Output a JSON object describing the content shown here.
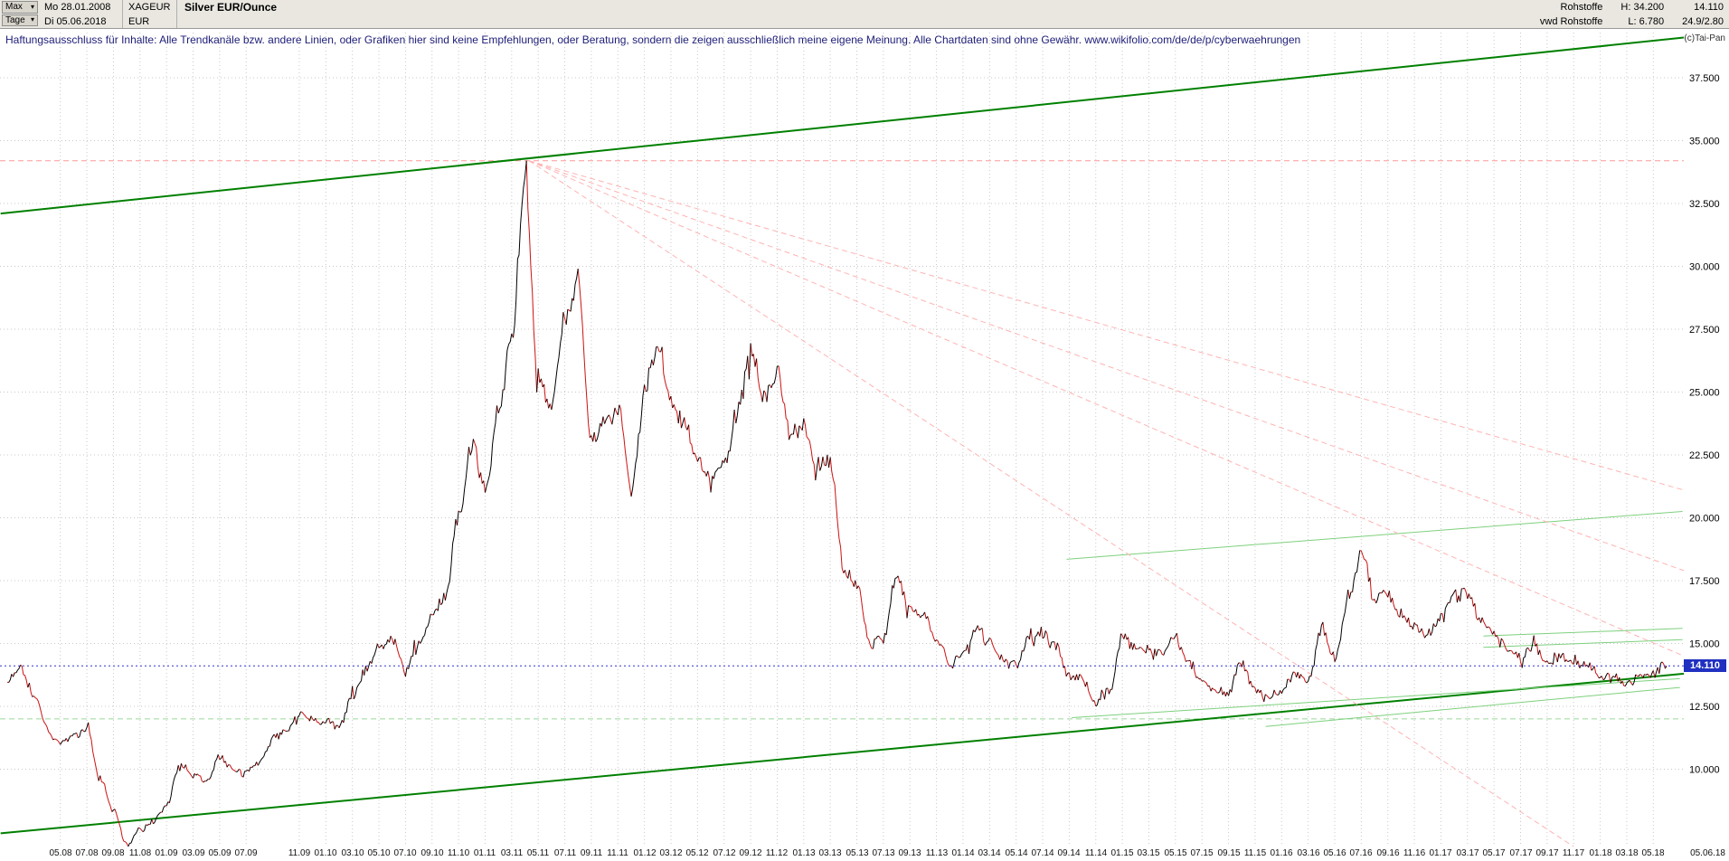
{
  "header": {
    "range_selector": "Max",
    "period_selector": "Tage",
    "start_date": "Mo 28.01.2008",
    "end_date": "Di 05.06.2018",
    "symbol": "XAGEUR",
    "currency": "EUR",
    "title": "Silver EUR/Ounce",
    "feed_line1": "Rohstoffe",
    "feed_line2": "vwd Rohstoffe",
    "high_label": "H: 34.200",
    "low_label": "L: 6.780",
    "value_top": "14.110",
    "value_bottom": "24.9/2.80",
    "copyright": "(c)Tai-Pan"
  },
  "disclaimer": "Haftungsausschluss für Inhalte: Alle Trendkanäle bzw. andere Linien, oder Grafiken hier sind keine Empfehlungen, oder Beratung, sondern die zeigen ausschließlich meine eigene Meinung. Alle Chartdaten sind ohne Gewähr.  www.wikifolio.com/de/de/p/cyberwaehrungen",
  "chart_data": {
    "type": "candlestick",
    "title": "Silver EUR/Ounce",
    "symbol": "XAGEUR",
    "currency": "EUR",
    "range": "Max",
    "timeframe": "Tage",
    "start_date": "Mo 28.01.2008",
    "end_date": "Di 05.06.2018",
    "high": 34.2,
    "low": 6.78,
    "last": 14.11,
    "last_label": "14.110",
    "ylim": [
      6.9,
      38.6
    ],
    "grid": true,
    "y_axis": {
      "tick_values": [
        37.5,
        35.0,
        32.5,
        30.0,
        27.5,
        25.0,
        22.5,
        20.0,
        17.5,
        15.0,
        12.5,
        10.0
      ],
      "tick_labels": [
        "37.500",
        "35.000",
        "32.500",
        "30.000",
        "27.500",
        "25.000",
        "22.500",
        "20.000",
        "17.500",
        "15.000",
        "12.500",
        "10.000"
      ]
    },
    "x_axis": {
      "tick_months": [
        4,
        6,
        8,
        10,
        12,
        14,
        16,
        18,
        22,
        24,
        26,
        28,
        30,
        32,
        34,
        36,
        38,
        40,
        42,
        44,
        46,
        48,
        50,
        52,
        54,
        56,
        58,
        60,
        62,
        64,
        66,
        68,
        70,
        72,
        74,
        76,
        78,
        80,
        82,
        84,
        86,
        88,
        90,
        92,
        94,
        96,
        98,
        100,
        102,
        104,
        106,
        108,
        110,
        112,
        114,
        116,
        118,
        120,
        122,
        124
      ],
      "tick_labels": [
        "05.08",
        "07.08",
        "09.08",
        "11.08",
        "01.09",
        "03.09",
        "05.09",
        "07.09",
        "11.09",
        "01.10",
        "03.10",
        "05.10",
        "07.10",
        "09.10",
        "11.10",
        "01.11",
        "03.11",
        "05.11",
        "07.11",
        "09.11",
        "11.11",
        "01.12",
        "03.12",
        "05.12",
        "07.12",
        "09.12",
        "11.12",
        "01.13",
        "03.13",
        "05.13",
        "07.13",
        "09.13",
        "11.13",
        "01.14",
        "03.14",
        "05.14",
        "07.14",
        "09.14",
        "11.14",
        "01.15",
        "03.15",
        "05.15",
        "07.15",
        "09.15",
        "11.15",
        "01.16",
        "03.16",
        "05.16",
        "07.16",
        "09.16",
        "11.16",
        "01.17",
        "03.17",
        "05.17",
        "07.17",
        "09.17",
        "11.17",
        "01.18",
        "03.18",
        "05.18"
      ],
      "end_label": "05.06.18"
    },
    "monthly_close_start": "2008-01",
    "monthly_close": [
      13.5,
      14.0,
      13.0,
      11.6,
      11.1,
      11.3,
      11.6,
      9.6,
      8.4,
      7.0,
      7.6,
      7.9,
      8.6,
      10.2,
      9.8,
      9.5,
      10.5,
      10.0,
      9.8,
      10.3,
      11.2,
      11.5,
      12.2,
      11.9,
      11.9,
      11.7,
      12.9,
      13.9,
      14.9,
      15.2,
      13.9,
      15.0,
      16.1,
      16.9,
      20.1,
      22.9,
      21.0,
      24.2,
      27.0,
      33.6,
      25.5,
      24.5,
      27.8,
      29.5,
      23.0,
      23.8,
      24.3,
      21.2,
      25.2,
      26.8,
      24.6,
      23.6,
      22.4,
      21.6,
      22.1,
      24.1,
      26.6,
      24.9,
      25.8,
      23.3,
      23.6,
      22.1,
      22.3,
      18.0,
      17.3,
      15.0,
      15.2,
      17.7,
      16.3,
      16.1,
      15.1,
      14.2,
      14.6,
      15.7,
      15.0,
      14.3,
      14.1,
      15.2,
      15.4,
      14.9,
      13.7,
      13.6,
      12.6,
      13.1,
      15.3,
      14.8,
      14.7,
      14.6,
      15.2,
      14.2,
      13.5,
      13.2,
      13.1,
      14.2,
      13.2,
      12.8,
      13.1,
      13.8,
      13.5,
      15.6,
      14.4,
      16.7,
      18.6,
      16.8,
      17.0,
      16.1,
      15.7,
      15.3,
      15.9,
      17.1,
      16.9,
      15.9,
      15.4,
      14.8,
      14.4,
      14.9,
      14.2,
      14.5,
      14.3,
      14.1,
      13.8,
      13.6,
      13.4,
      13.7,
      13.9,
      14.11
    ],
    "trend_lines": [
      {
        "name": "upper-channel-line",
        "m1": -0.5,
        "p1": 32.1,
        "m2": 126.3,
        "p2": 39.1,
        "color": "#008000",
        "width": 2,
        "dash": ""
      },
      {
        "name": "lower-channel-line",
        "m1": -0.5,
        "p1": 7.45,
        "m2": 126.3,
        "p2": 13.8,
        "color": "#008000",
        "width": 2,
        "dash": ""
      },
      {
        "name": "mid-resistance-line",
        "m1": 79.8,
        "p1": 18.35,
        "m2": 126.2,
        "p2": 20.25,
        "color": "#7ed07e",
        "width": 1,
        "dash": ""
      },
      {
        "name": "low-support-line-a",
        "m1": 80.2,
        "p1": 12.05,
        "m2": 126.0,
        "p2": 13.6,
        "color": "#7ed07e",
        "width": 1,
        "dash": ""
      },
      {
        "name": "low-support-line-b",
        "m1": 94.8,
        "p1": 11.7,
        "m2": 126.0,
        "p2": 13.25,
        "color": "#7ed07e",
        "width": 1,
        "dash": ""
      },
      {
        "name": "short-resistance-line-a",
        "m1": 111.2,
        "p1": 15.3,
        "m2": 126.2,
        "p2": 15.6,
        "color": "#7ed07e",
        "width": 1,
        "dash": ""
      },
      {
        "name": "short-resistance-line-b",
        "m1": 111.2,
        "p1": 14.85,
        "m2": 126.2,
        "p2": 15.15,
        "color": "#7ed07e",
        "width": 1,
        "dash": ""
      },
      {
        "name": "fan-line-1",
        "m1": 39.3,
        "p1": 34.2,
        "m2": 126.3,
        "p2": 21.1,
        "color": "#ffb3b3",
        "width": 1,
        "dash": "6,4"
      },
      {
        "name": "fan-line-2",
        "m1": 39.3,
        "p1": 34.2,
        "m2": 126.3,
        "p2": 17.9,
        "color": "#ffb3b3",
        "width": 1,
        "dash": "6,4"
      },
      {
        "name": "fan-line-3",
        "m1": 39.3,
        "p1": 34.2,
        "m2": 126.3,
        "p2": 14.5,
        "color": "#ffb3b3",
        "width": 1,
        "dash": "6,4"
      },
      {
        "name": "fan-line-4",
        "m1": 39.3,
        "p1": 34.2,
        "m2": 119.5,
        "p2": 6.4,
        "color": "#ffb3b3",
        "width": 1,
        "dash": "6,4"
      }
    ],
    "h_lines": [
      {
        "name": "all-time-high-line",
        "p": 34.2,
        "color": "#ff9999",
        "dash": "6,4",
        "width": 1,
        "above": false
      },
      {
        "name": "green-support-h-line",
        "p": 12.0,
        "color": "#9ad89a",
        "dash": "6,4",
        "width": 1,
        "above": false
      },
      {
        "name": "last-price-line",
        "p": 14.11,
        "color": "#3333cc",
        "dash": "2,3",
        "width": 1,
        "above": true
      }
    ],
    "colors": {
      "up": "#000000",
      "down": "#cc1111",
      "grid": "#c9c9c9",
      "tag_bg": "#2030c0",
      "channel": "#008000",
      "light_green": "#7ed07e",
      "pink": "#ffb3b3",
      "blue_line": "#3333cc"
    }
  }
}
